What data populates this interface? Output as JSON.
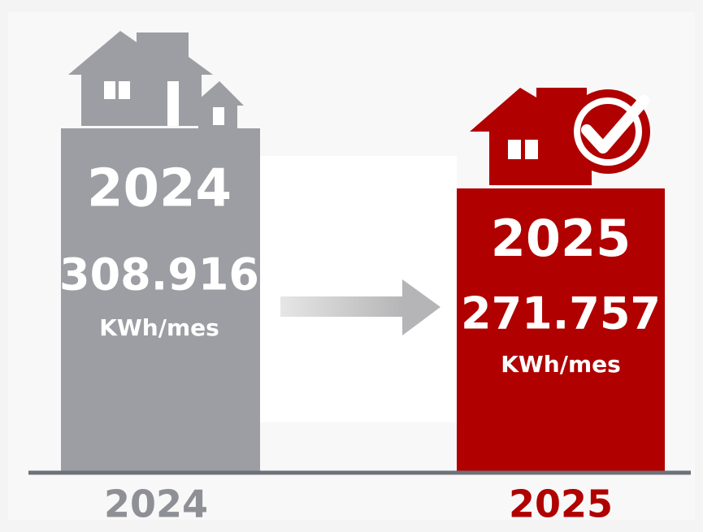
{
  "bars": [
    {
      "year": "2024",
      "value": "308.916",
      "unit": "KWh/mes"
    },
    {
      "year": "2025",
      "value": "271.757",
      "unit": "KWh/mes"
    }
  ],
  "axis_labels": [
    "2024",
    "2025"
  ]
}
